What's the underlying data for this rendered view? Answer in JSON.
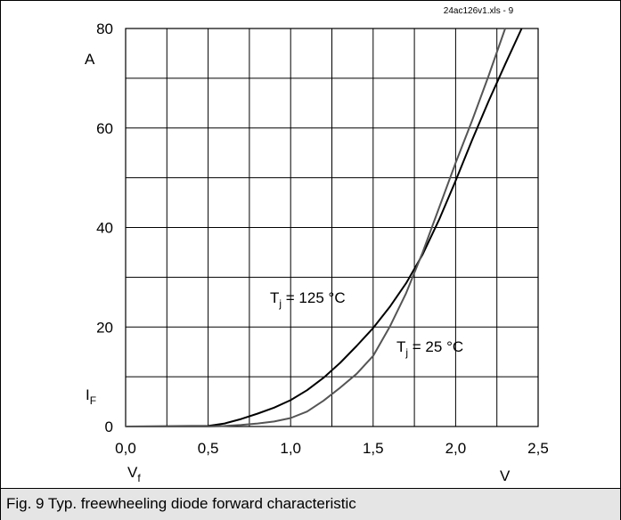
{
  "source_label": "24ac126v1.xls - 9",
  "caption": "Fig. 9 Typ. freewheeling diode forward characteristic",
  "chart_data": {
    "type": "line",
    "title": "",
    "xlabel": "V",
    "xsymbol": "V",
    "xsymbol_sub": "f",
    "ylabel": "A",
    "ysymbol": "I",
    "ysymbol_sub": "F",
    "xlim": [
      0,
      2.5
    ],
    "ylim": [
      0,
      80
    ],
    "x_ticks": [
      0,
      0.5,
      1.0,
      1.5,
      2.0,
      2.5
    ],
    "x_tick_labels": [
      "0,0",
      "0,5",
      "1,0",
      "1,5",
      "2,0",
      "2,5"
    ],
    "y_ticks": [
      0,
      20,
      40,
      60,
      80
    ],
    "y_tick_labels": [
      "0",
      "20",
      "40",
      "60",
      "80"
    ],
    "grid": true,
    "series": [
      {
        "name": "Tj = 125 °C",
        "label_main": "T",
        "label_sub": "j",
        "label_rest": " = 125 °C",
        "color": "#000000",
        "points": [
          [
            0,
            0
          ],
          [
            0.5,
            0.1
          ],
          [
            0.6,
            0.6
          ],
          [
            0.7,
            1.5
          ],
          [
            0.8,
            2.6
          ],
          [
            0.9,
            3.8
          ],
          [
            1.0,
            5.3
          ],
          [
            1.1,
            7.3
          ],
          [
            1.2,
            9.8
          ],
          [
            1.3,
            12.8
          ],
          [
            1.4,
            16.2
          ],
          [
            1.5,
            19.8
          ],
          [
            1.6,
            24.0
          ],
          [
            1.7,
            28.8
          ],
          [
            1.8,
            34.6
          ],
          [
            1.9,
            41.6
          ],
          [
            2.0,
            49.4
          ],
          [
            2.1,
            57.6
          ],
          [
            2.2,
            65.4
          ],
          [
            2.3,
            72.8
          ],
          [
            2.4,
            80.0
          ]
        ]
      },
      {
        "name": "Tj = 25 °C",
        "label_main": "T",
        "label_sub": "j",
        "label_rest": " = 25 °C",
        "color": "#555555",
        "points": [
          [
            0,
            0
          ],
          [
            0.5,
            0.0
          ],
          [
            0.6,
            0.1
          ],
          [
            0.7,
            0.3
          ],
          [
            0.8,
            0.6
          ],
          [
            0.9,
            1.0
          ],
          [
            1.0,
            1.7
          ],
          [
            1.1,
            3.0
          ],
          [
            1.2,
            5.2
          ],
          [
            1.3,
            7.8
          ],
          [
            1.4,
            10.6
          ],
          [
            1.5,
            14.2
          ],
          [
            1.6,
            20.0
          ],
          [
            1.7,
            26.8
          ],
          [
            1.8,
            35.0
          ],
          [
            1.9,
            44.0
          ],
          [
            2.0,
            53.0
          ],
          [
            2.1,
            61.5
          ],
          [
            2.2,
            70.5
          ],
          [
            2.3,
            80.0
          ]
        ]
      }
    ]
  }
}
